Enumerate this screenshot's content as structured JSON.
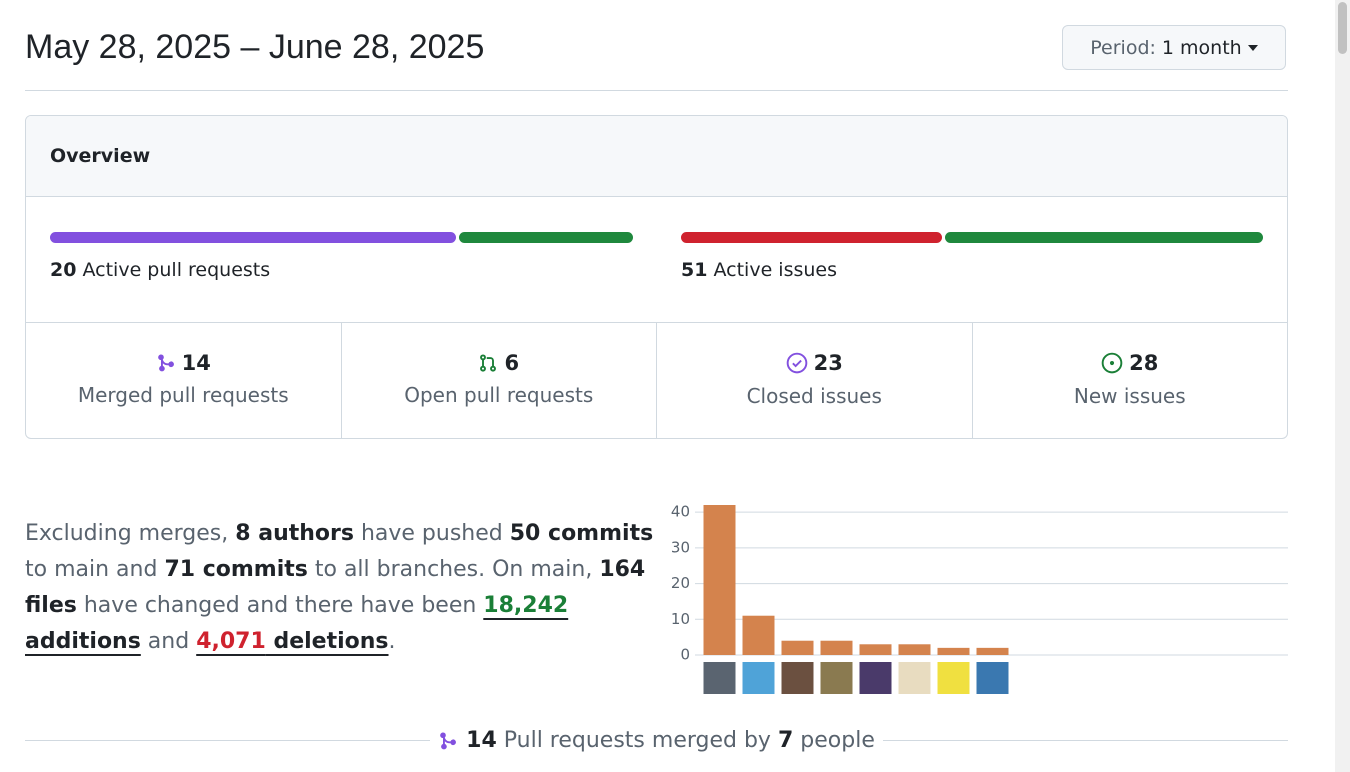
{
  "header": {
    "title": "May 28, 2025 – June 28, 2025",
    "period_label": "Period:",
    "period_value": "1 month"
  },
  "overview": {
    "title": "Overview",
    "pull_requests": {
      "count": 20,
      "label": "Active pull requests",
      "merged": 14,
      "open": 6
    },
    "issues": {
      "count": 51,
      "label": "Active issues",
      "closed": 23,
      "new": 28
    },
    "stats": [
      {
        "value": 14,
        "label": "Merged pull requests"
      },
      {
        "value": 6,
        "label": "Open pull requests"
      },
      {
        "value": 23,
        "label": "Closed issues"
      },
      {
        "value": 28,
        "label": "New issues"
      }
    ]
  },
  "summary": [
    "Excluding merges, ",
    "8 authors",
    " have pushed ",
    "50 commits",
    " to main and ",
    "71 commits",
    " to all branches. On main, ",
    "164 files",
    " have changed and there have been ",
    "18,242",
    " additions",
    " and ",
    "4,071",
    " deletions",
    "."
  ],
  "chart_data": {
    "type": "bar",
    "categories": [
      null,
      null,
      null,
      null,
      null,
      null,
      null,
      null
    ],
    "values": [
      42,
      11,
      4,
      4,
      3,
      3,
      2,
      2
    ],
    "color": "#d4834d",
    "ylim": [
      0,
      42
    ],
    "yticks": [
      0,
      10,
      20,
      30,
      40
    ],
    "grid": true
  },
  "footer": {
    "count": "14",
    "text": "Pull requests merged by",
    "people_count": "7",
    "people": "people"
  }
}
